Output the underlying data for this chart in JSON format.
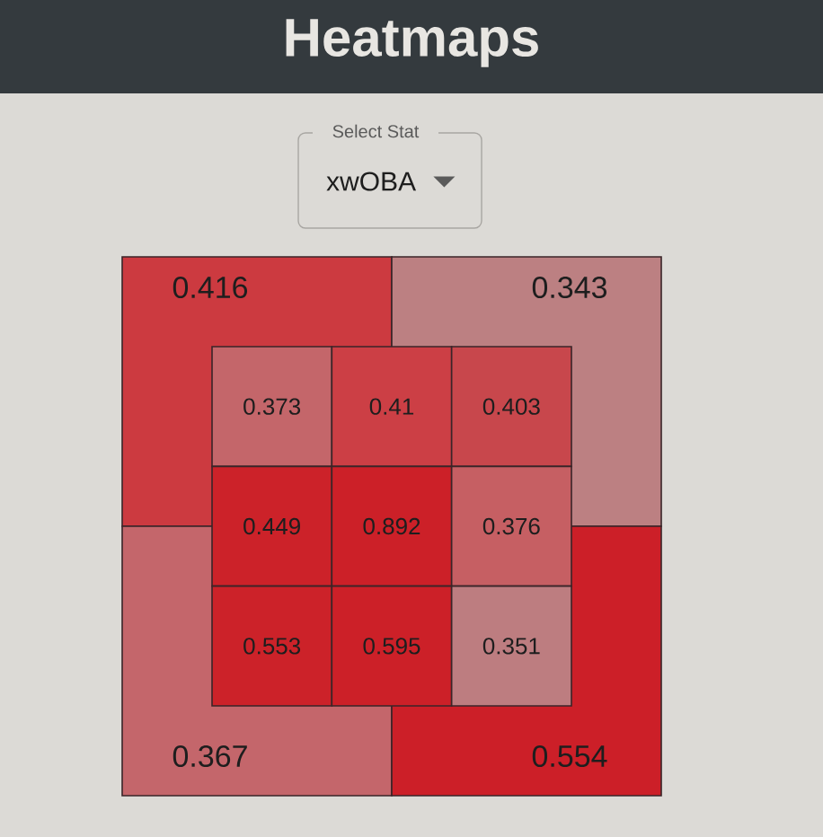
{
  "chart_data": [
    {
      "type": "heatmap",
      "title": "Heatmaps",
      "annotations": [
        "Select Stat",
        "xwOBA"
      ],
      "categories": [
        null,
        null
      ],
      "y_categories": [
        null,
        null
      ],
      "cells": [
        [
          0.416,
          0.343
        ],
        [
          0.367,
          0.554
        ]
      ],
      "data_labels": true,
      "colors": [
        "#cc3a40",
        "#bc8082",
        "#c4666b",
        "#cc1f28"
      ]
    },
    {
      "type": "heatmap",
      "categories": [
        null,
        null,
        null
      ],
      "y_categories": [
        null,
        null,
        null
      ],
      "cells": [
        [
          0.373,
          0.41,
          0.403
        ],
        [
          0.449,
          0.892,
          0.376
        ],
        [
          0.553,
          0.595,
          0.351
        ]
      ],
      "data_labels": true,
      "colors": [
        "#c4666a",
        "#cc3f45",
        "#c8474c",
        "#cc2229",
        "#cc2028",
        "#c65f63",
        "#cc2229",
        "#cc2028",
        "#bd7d80"
      ]
    }
  ]
}
